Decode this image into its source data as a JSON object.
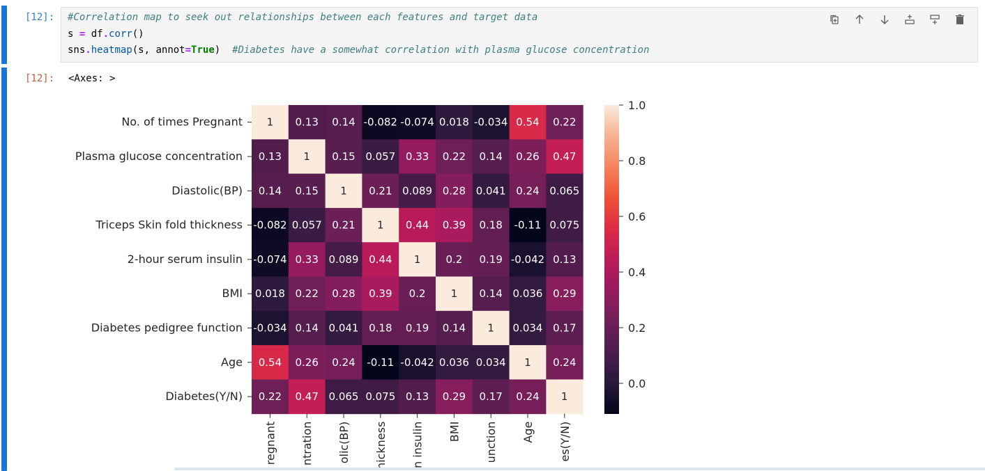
{
  "input_cell": {
    "prompt": "[12]:",
    "code_lines": [
      [
        {
          "t": "#Correlation map to seek out relationships between each features and target data",
          "c": "c-comment"
        }
      ],
      [
        {
          "t": "s ",
          "c": ""
        },
        {
          "t": "=",
          "c": "c-op"
        },
        {
          "t": " df",
          "c": ""
        },
        {
          "t": ".",
          "c": "c-op"
        },
        {
          "t": "corr",
          "c": "c-attr"
        },
        {
          "t": "()",
          "c": ""
        }
      ],
      [
        {
          "t": "sns",
          "c": ""
        },
        {
          "t": ".",
          "c": "c-op"
        },
        {
          "t": "heatmap",
          "c": "c-attr"
        },
        {
          "t": "(s, annot",
          "c": ""
        },
        {
          "t": "=",
          "c": "c-op"
        },
        {
          "t": "True",
          "c": "c-kw"
        },
        {
          "t": ")  ",
          "c": ""
        },
        {
          "t": "#Diabetes have a somewhat correlation with plasma glucose concentration",
          "c": "c-comment"
        }
      ]
    ],
    "toolbar": [
      "duplicate-icon",
      "move-up-icon",
      "move-down-icon",
      "insert-above-icon",
      "insert-below-icon",
      "delete-icon"
    ]
  },
  "output_cell": {
    "prompt": "[12]:",
    "text": "<Axes: >"
  },
  "chart_data": {
    "type": "heatmap",
    "colormap": "rocket",
    "row_labels": [
      "No. of times Pregnant",
      "Plasma glucose concentration",
      "Diastolic(BP)",
      "Triceps Skin fold thickness",
      "2-hour serum insulin",
      "BMI",
      "Diabetes pedigree function",
      "Age",
      "Diabetes(Y/N)"
    ],
    "col_labels_visible": [
      "regnant",
      "ntration",
      "olic(BP)",
      "nickness",
      "n insulin",
      "BMI",
      "unction",
      "Age",
      "es(Y/N)"
    ],
    "annotations": [
      [
        "1",
        "0.13",
        "0.14",
        "-0.082",
        "-0.074",
        "0.018",
        "-0.034",
        "0.54",
        "0.22"
      ],
      [
        "0.13",
        "1",
        "0.15",
        "0.057",
        "0.33",
        "0.22",
        "0.14",
        "0.26",
        "0.47"
      ],
      [
        "0.14",
        "0.15",
        "1",
        "0.21",
        "0.089",
        "0.28",
        "0.041",
        "0.24",
        "0.065"
      ],
      [
        "-0.082",
        "0.057",
        "0.21",
        "1",
        "0.44",
        "0.39",
        "0.18",
        "-0.11",
        "0.075"
      ],
      [
        "-0.074",
        "0.33",
        "0.089",
        "0.44",
        "1",
        "0.2",
        "0.19",
        "-0.042",
        "0.13"
      ],
      [
        "0.018",
        "0.22",
        "0.28",
        "0.39",
        "0.2",
        "1",
        "0.14",
        "0.036",
        "0.29"
      ],
      [
        "-0.034",
        "0.14",
        "0.041",
        "0.18",
        "0.19",
        "0.14",
        "1",
        "0.034",
        "0.17"
      ],
      [
        "0.54",
        "0.26",
        "0.24",
        "-0.11",
        "-0.042",
        "0.036",
        "0.034",
        "1",
        "0.24"
      ],
      [
        "0.22",
        "0.47",
        "0.065",
        "0.075",
        "0.13",
        "0.29",
        "0.17",
        "0.24",
        "1"
      ]
    ],
    "vmin": -0.11,
    "vmax": 1.0,
    "colorbar_ticks": [
      "0.0",
      "0.2",
      "0.4",
      "0.6",
      "0.8",
      "1.0"
    ]
  }
}
